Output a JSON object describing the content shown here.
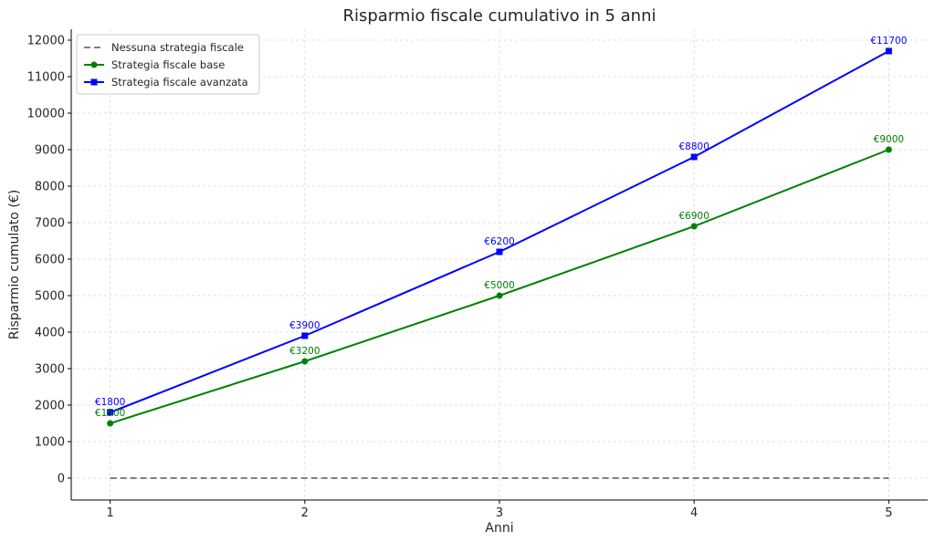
{
  "chart_data": {
    "type": "line",
    "title": "Risparmio fiscale cumulativo in 5 anni",
    "xlabel": "Anni",
    "ylabel": "Risparmio cumulato (€)",
    "x": [
      1,
      2,
      3,
      4,
      5
    ],
    "xlim": [
      0.8,
      5.2
    ],
    "ylim": [
      -600,
      12300
    ],
    "yticks": [
      0,
      1000,
      2000,
      3000,
      4000,
      5000,
      6000,
      7000,
      8000,
      9000,
      10000,
      11000,
      12000
    ],
    "grid": true,
    "legend_position": "top-left",
    "series": [
      {
        "name": "Nessuna strategia fiscale",
        "values": [
          0,
          0,
          0,
          0,
          0
        ],
        "color": "#808080",
        "line_style": "dashed",
        "marker": "none",
        "labels": []
      },
      {
        "name": "Strategia fiscale base",
        "values": [
          1500,
          3200,
          5000,
          6900,
          9000
        ],
        "color": "#008000",
        "line_style": "solid",
        "marker": "circle",
        "labels": [
          "€1500",
          "€3200",
          "€5000",
          "€6900",
          "€9000"
        ]
      },
      {
        "name": "Strategia fiscale avanzata",
        "values": [
          1800,
          3900,
          6200,
          8800,
          11700
        ],
        "color": "#0000ff",
        "line_style": "solid",
        "marker": "square",
        "labels": [
          "€1800",
          "€3900",
          "€6200",
          "€8800",
          "€11700"
        ]
      }
    ]
  }
}
